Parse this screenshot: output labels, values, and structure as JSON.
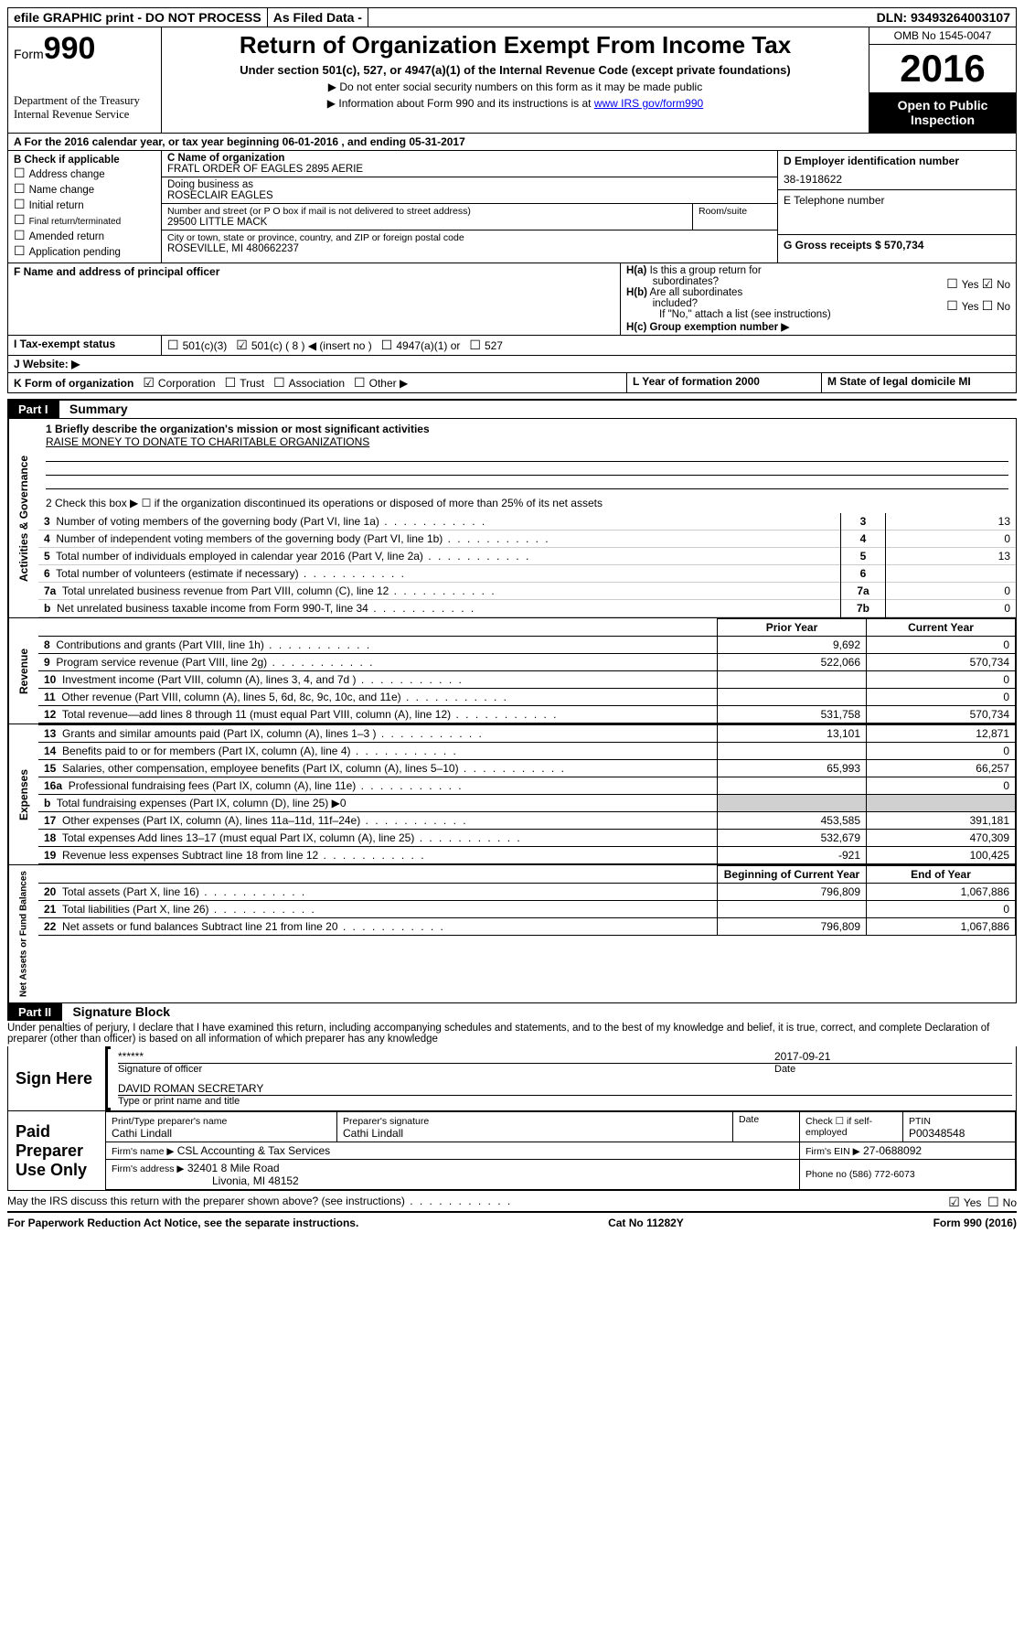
{
  "topbar": {
    "efile": "efile GRAPHIC print - DO NOT PROCESS",
    "asfiled": "As Filed Data -",
    "dln": "DLN: 93493264003107"
  },
  "header": {
    "form_prefix": "Form",
    "form_num": "990",
    "dept": "Department of the Treasury\nInternal Revenue Service",
    "title": "Return of Organization Exempt From Income Tax",
    "sub": "Under section 501(c), 527, or 4947(a)(1) of the Internal Revenue Code (except private foundations)",
    "note1": "▶ Do not enter social security numbers on this form as it may be made public",
    "note2_a": "▶ Information about Form 990 and its instructions is at ",
    "note2_link": "www IRS gov/form990",
    "omb": "OMB No 1545-0047",
    "year": "2016",
    "inspection": "Open to Public Inspection"
  },
  "a_line": "A  For the 2016 calendar year, or tax year beginning 06-01-2016   , and ending 05-31-2017",
  "b": {
    "hdr": "B Check if applicable",
    "i1": "Address change",
    "i2": "Name change",
    "i3": "Initial return",
    "i4": "Final return/terminated",
    "i5": "Amended return",
    "i6": "Application pending"
  },
  "c": {
    "label": "C Name of organization",
    "name": "FRATL ORDER OF EAGLES 2895 AERIE",
    "dba_l": "Doing business as",
    "dba": "ROSECLAIR EAGLES",
    "addr_l": "Number and street (or P O  box if mail is not delivered to street address)",
    "room": "Room/suite",
    "addr": "29500 LITTLE MACK",
    "city_l": "City or town, state or province, country, and ZIP or foreign postal code",
    "city": "ROSEVILLE, MI  480662237"
  },
  "d": {
    "label": "D Employer identification number",
    "val": "38-1918622"
  },
  "e": {
    "label": "E Telephone number"
  },
  "g": {
    "label": "G Gross receipts $ 570,734"
  },
  "f": {
    "label": "F  Name and address of principal officer"
  },
  "h": {
    "a": "H(a)  Is this a group return for subordinates?",
    "b": "H(b)  Are all subordinates included?",
    "b2": "If \"No,\" attach a list  (see instructions)",
    "c": "H(c)  Group exemption number ▶",
    "yes": "Yes",
    "no": "No"
  },
  "i": {
    "label": "I  Tax-exempt status",
    "o1": "501(c)(3)",
    "o2": "501(c) ( 8 ) ◀ (insert no )",
    "o3": "4947(a)(1) or",
    "o4": "527"
  },
  "j": {
    "label": "J  Website: ▶"
  },
  "k": {
    "label": "K Form of organization",
    "o1": "Corporation",
    "o2": "Trust",
    "o3": "Association",
    "o4": "Other ▶"
  },
  "l": {
    "label": "L Year of formation  2000"
  },
  "m": {
    "label": "M State of legal domicile  MI"
  },
  "part1": {
    "hdr": "Part I",
    "title": "Summary"
  },
  "gov": {
    "v": "Activities & Governance",
    "l1": "1 Briefly describe the organization's mission or most significant activities",
    "l1v": "RAISE MONEY TO DONATE TO CHARITABLE ORGANIZATIONS",
    "l2": "2  Check this box ▶ ☐ if the organization discontinued its operations or disposed of more than 25% of its net assets",
    "rows": [
      {
        "n": "3",
        "t": "Number of voting members of the governing body (Part VI, line 1a)",
        "k": "3",
        "v": "13"
      },
      {
        "n": "4",
        "t": "Number of independent voting members of the governing body (Part VI, line 1b)",
        "k": "4",
        "v": "0"
      },
      {
        "n": "5",
        "t": "Total number of individuals employed in calendar year 2016 (Part V, line 2a)",
        "k": "5",
        "v": "13"
      },
      {
        "n": "6",
        "t": "Total number of volunteers (estimate if necessary)",
        "k": "6",
        "v": ""
      },
      {
        "n": "7a",
        "t": "Total unrelated business revenue from Part VIII, column (C), line 12",
        "k": "7a",
        "v": "0"
      },
      {
        "n": "b",
        "t": "Net unrelated business taxable income from Form 990-T, line 34",
        "k": "7b",
        "v": "0"
      }
    ]
  },
  "fin_hdr": {
    "py": "Prior Year",
    "cy": "Current Year",
    "boy": "Beginning of Current Year",
    "eoy": "End of Year"
  },
  "rev": {
    "v": "Revenue",
    "rows": [
      {
        "n": "8",
        "t": "Contributions and grants (Part VIII, line 1h)",
        "p": "9,692",
        "c": "0"
      },
      {
        "n": "9",
        "t": "Program service revenue (Part VIII, line 2g)",
        "p": "522,066",
        "c": "570,734"
      },
      {
        "n": "10",
        "t": "Investment income (Part VIII, column (A), lines 3, 4, and 7d )",
        "p": "",
        "c": "0"
      },
      {
        "n": "11",
        "t": "Other revenue (Part VIII, column (A), lines 5, 6d, 8c, 9c, 10c, and 11e)",
        "p": "",
        "c": "0"
      },
      {
        "n": "12",
        "t": "Total revenue—add lines 8 through 11 (must equal Part VIII, column (A), line 12)",
        "p": "531,758",
        "c": "570,734"
      }
    ]
  },
  "exp": {
    "v": "Expenses",
    "rows": [
      {
        "n": "13",
        "t": "Grants and similar amounts paid (Part IX, column (A), lines 1–3 )",
        "p": "13,101",
        "c": "12,871"
      },
      {
        "n": "14",
        "t": "Benefits paid to or for members (Part IX, column (A), line 4)",
        "p": "",
        "c": "0"
      },
      {
        "n": "15",
        "t": "Salaries, other compensation, employee benefits (Part IX, column (A), lines 5–10)",
        "p": "65,993",
        "c": "66,257"
      },
      {
        "n": "16a",
        "t": "Professional fundraising fees (Part IX, column (A), line 11e)",
        "p": "",
        "c": "0"
      },
      {
        "n": "b",
        "t": "Total fundraising expenses (Part IX, column (D), line 25) ▶0",
        "p": "—",
        "c": "—"
      },
      {
        "n": "17",
        "t": "Other expenses (Part IX, column (A), lines 11a–11d, 11f–24e)",
        "p": "453,585",
        "c": "391,181"
      },
      {
        "n": "18",
        "t": "Total expenses  Add lines 13–17 (must equal Part IX, column (A), line 25)",
        "p": "532,679",
        "c": "470,309"
      },
      {
        "n": "19",
        "t": "Revenue less expenses  Subtract line 18 from line 12",
        "p": "-921",
        "c": "100,425"
      }
    ]
  },
  "net": {
    "v": "Net Assets or Fund Balances",
    "rows": [
      {
        "n": "20",
        "t": "Total assets (Part X, line 16)",
        "p": "796,809",
        "c": "1,067,886"
      },
      {
        "n": "21",
        "t": "Total liabilities (Part X, line 26)",
        "p": "",
        "c": "0"
      },
      {
        "n": "22",
        "t": "Net assets or fund balances  Subtract line 21 from line 20",
        "p": "796,809",
        "c": "1,067,886"
      }
    ]
  },
  "part2": {
    "hdr": "Part II",
    "title": "Signature Block",
    "decl": "Under penalties of perjury, I declare that I have examined this return, including accompanying schedules and statements, and to the best of my knowledge and belief, it is true, correct, and complete  Declaration of preparer (other than officer) is based on all information of which preparer has any knowledge"
  },
  "sign": {
    "here": "Sign Here",
    "stars": "******",
    "sig": "Signature of officer",
    "date": "2017-09-21",
    "date_l": "Date",
    "name": "DAVID ROMAN  SECRETARY",
    "name_l": "Type or print name and title"
  },
  "paid": {
    "hdr": "Paid Preparer Use Only",
    "pname_l": "Print/Type preparer's name",
    "pname": "Cathi Lindall",
    "psig_l": "Preparer's signature",
    "psig": "Cathi Lindall",
    "pdate_l": "Date",
    "chk": "Check ☐ if self-employed",
    "ptin_l": "PTIN",
    "ptin": "P00348548",
    "firm_l": "Firm's name    ▶",
    "firm": "CSL Accounting & Tax Services",
    "ein_l": "Firm's EIN ▶",
    "ein": "27-0688092",
    "addr_l": "Firm's address ▶",
    "addr": "32401 8 Mile Road",
    "addr2": "Livonia, MI  48152",
    "phone_l": "Phone no  (586) 772-6073"
  },
  "discuss": "May the IRS discuss this return with the preparer shown above? (see instructions)",
  "foot": {
    "l": "For Paperwork Reduction Act Notice, see the separate instructions.",
    "m": "Cat  No  11282Y",
    "r": "Form 990 (2016)"
  }
}
